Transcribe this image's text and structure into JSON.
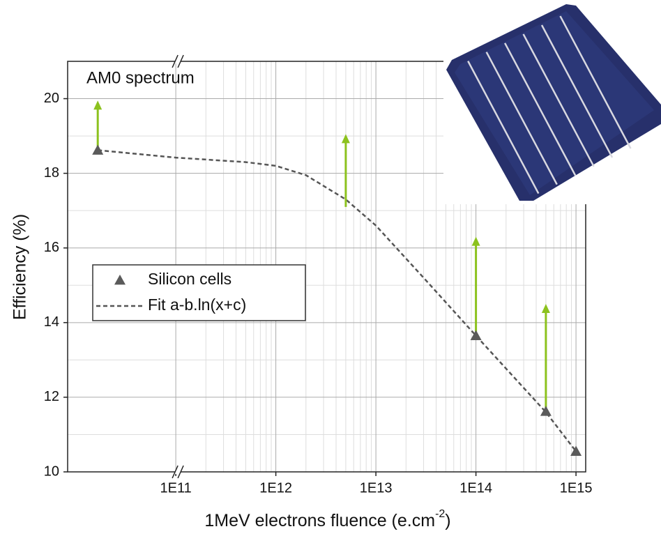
{
  "chart_data": {
    "type": "scatter",
    "annotation": "AM0 spectrum",
    "y_label": "Efficiency (%)",
    "x_label": {
      "text": "1MeV electrons fluence (e.cm",
      "sup": "-2",
      "end": ")"
    },
    "xscale": "log",
    "xlim": [
      8300000000,
      1250000000000000
    ],
    "xticks": [
      {
        "value": 100000000000,
        "label": "1E11"
      },
      {
        "value": 1000000000000,
        "label": "1E12"
      },
      {
        "value": 10000000000000,
        "label": "1E13"
      },
      {
        "value": 100000000000000,
        "label": "1E14"
      },
      {
        "value": 1000000000000000,
        "label": "1E15"
      }
    ],
    "x_break": 100000000000,
    "ylim": [
      10,
      21
    ],
    "yticks": [
      10,
      12,
      14,
      16,
      18,
      20
    ],
    "yminor": [
      11,
      13,
      15,
      17,
      19
    ],
    "grid": true,
    "minor_grid": true,
    "series": [
      {
        "name": "Silicon cells",
        "color": "#5a5a5a",
        "marker": "triangle",
        "x": [
          16600000000,
          100000000000000,
          500000000000000,
          1000000000000000
        ],
        "values": [
          18.62,
          13.65,
          11.62,
          10.55
        ]
      },
      {
        "name": "Fit a-b.ln(x+c)",
        "color": "#555555",
        "style": "dashed",
        "x": [
          16600000000,
          100000000000,
          500000000000,
          1000000000000,
          2000000000000,
          5000000000000,
          10000000000000,
          30000000000000,
          100000000000000,
          500000000000000,
          1000000000000000
        ],
        "values": [
          18.62,
          18.42,
          18.3,
          18.2,
          17.95,
          17.3,
          16.6,
          15.2,
          13.65,
          11.6,
          10.55
        ]
      }
    ],
    "arrows": {
      "color": "#8cc21e",
      "items": [
        {
          "x": 16600000000,
          "from": 18.62,
          "to": 19.95
        },
        {
          "x": 5000000000000,
          "from": 17.1,
          "to": 19.05
        },
        {
          "x": 100000000000000,
          "from": 13.65,
          "to": 16.3
        },
        {
          "x": 500000000000000,
          "from": 11.62,
          "to": 14.5
        }
      ]
    },
    "legend": "center-left"
  }
}
